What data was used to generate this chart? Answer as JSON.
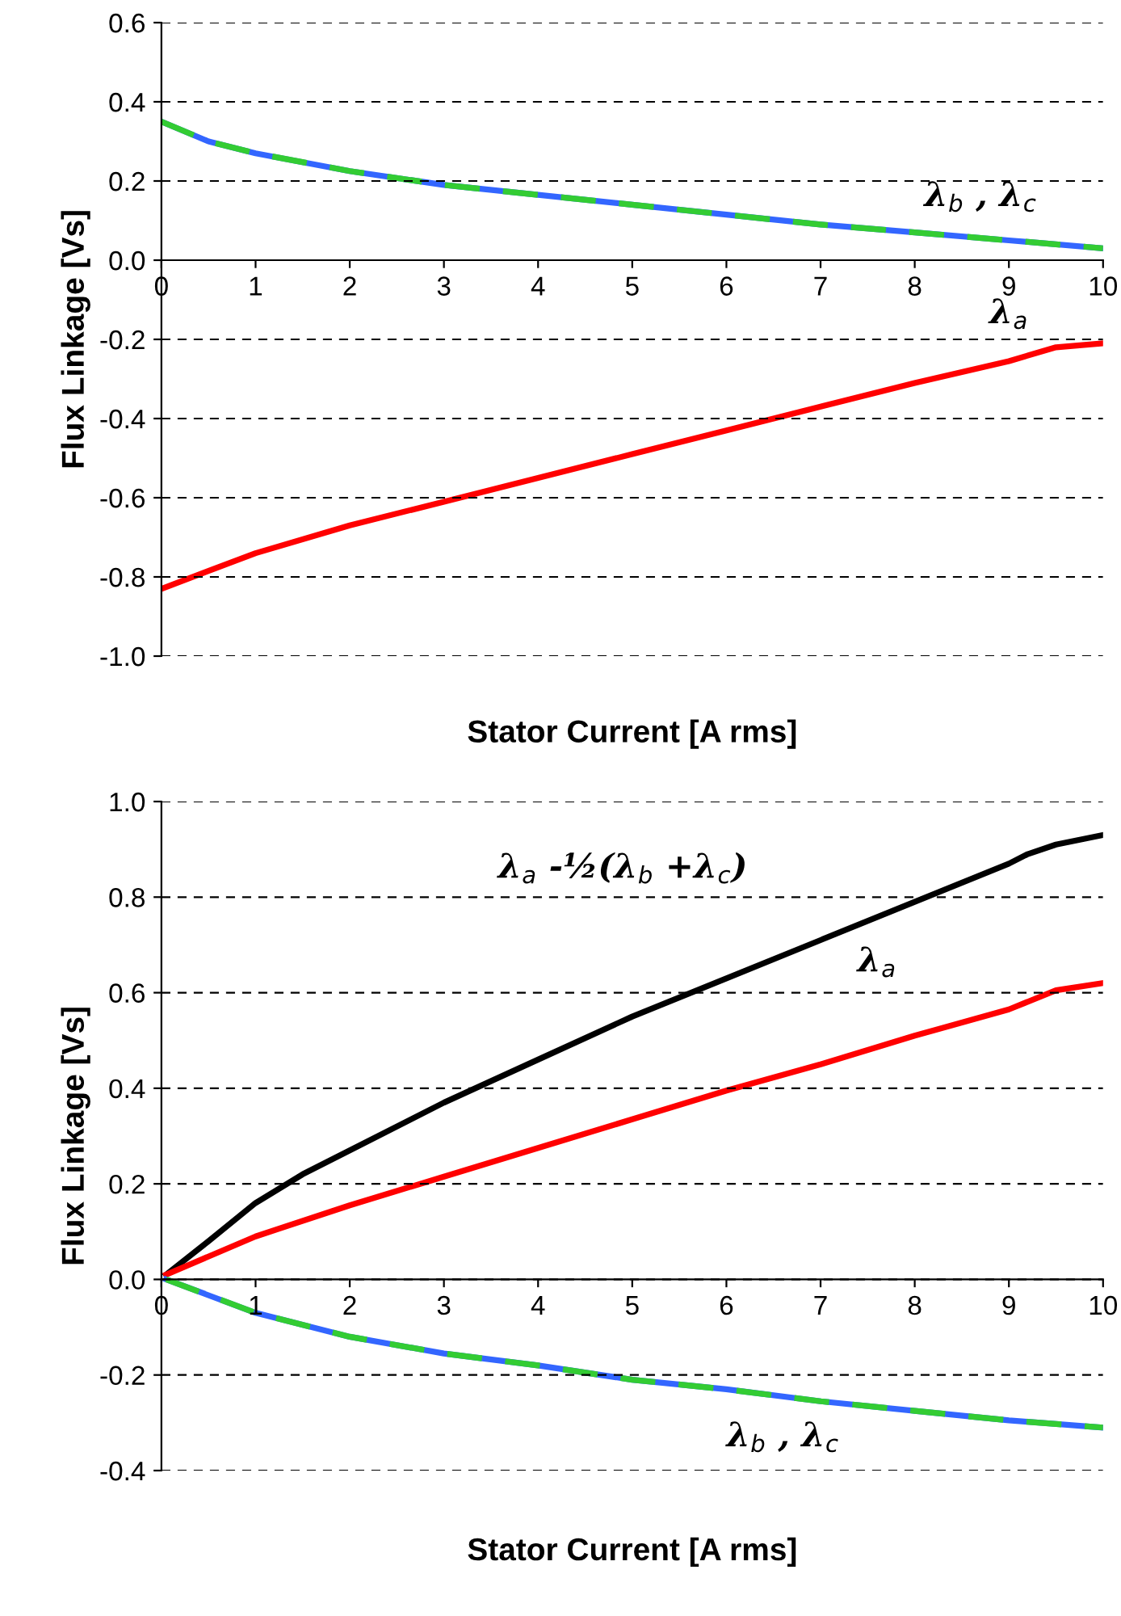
{
  "chart_data": [
    {
      "type": "line",
      "xlabel": "Stator Current [A rms]",
      "ylabel": "Flux Linkage [Vs]",
      "xlim": [
        0,
        10
      ],
      "ylim": [
        -1.0,
        0.6
      ],
      "xticks": [
        0,
        1,
        2,
        3,
        4,
        5,
        6,
        7,
        8,
        9,
        10
      ],
      "yticks": [
        {
          "value": -1.0,
          "label": "-1.0"
        },
        {
          "value": -0.8,
          "label": "-0.8"
        },
        {
          "value": -0.6,
          "label": "-0.6"
        },
        {
          "value": -0.4,
          "label": "-0.4"
        },
        {
          "value": -0.2,
          "label": "-0.2"
        },
        {
          "value": 0.0,
          "label": "0.0"
        },
        {
          "value": 0.2,
          "label": "0.2"
        },
        {
          "value": 0.4,
          "label": "0.4"
        },
        {
          "value": 0.6,
          "label": "0.6"
        }
      ],
      "grid": "y",
      "legend": false,
      "series": [
        {
          "color": "#ff0000",
          "line_style": "solid",
          "x": [
            0,
            1,
            2,
            3,
            4,
            5,
            6,
            7,
            8,
            9,
            9.5,
            10
          ],
          "values": [
            -0.83,
            -0.74,
            -0.67,
            -0.61,
            -0.55,
            -0.49,
            -0.43,
            -0.37,
            -0.31,
            -0.255,
            -0.22,
            -0.21
          ]
        },
        {
          "color": "#3366ff",
          "line_style": "solid",
          "x": [
            0,
            0.5,
            1,
            2,
            3,
            4,
            5,
            6,
            7,
            8,
            9,
            10
          ],
          "values": [
            0.35,
            0.3,
            0.27,
            0.225,
            0.19,
            0.165,
            0.14,
            0.115,
            0.09,
            0.07,
            0.05,
            0.03
          ]
        },
        {
          "color": "#33cc33",
          "line_style": "dashed",
          "x": [
            0,
            0.5,
            1,
            2,
            3,
            4,
            5,
            6,
            7,
            8,
            9,
            10
          ],
          "values": [
            0.35,
            0.3,
            0.27,
            0.225,
            0.19,
            0.165,
            0.14,
            0.115,
            0.09,
            0.07,
            0.05,
            0.03
          ]
        }
      ],
      "annotations": [
        "λ$_{b}$ , λ$_{c}$",
        "λ$_{a}$"
      ]
    },
    {
      "type": "line",
      "xlabel": "Stator Current [A rms]",
      "ylabel": "Flux Linkage [Vs]",
      "xlim": [
        0,
        10
      ],
      "ylim": [
        -0.4,
        1.0
      ],
      "xticks": [
        0,
        1,
        2,
        3,
        4,
        5,
        6,
        7,
        8,
        9,
        10
      ],
      "yticks": [
        {
          "value": -0.4,
          "label": "-0.4"
        },
        {
          "value": -0.2,
          "label": "-0.2"
        },
        {
          "value": 0.0,
          "label": "0.0"
        },
        {
          "value": 0.2,
          "label": "0.2"
        },
        {
          "value": 0.4,
          "label": "0.4"
        },
        {
          "value": 0.6,
          "label": "0.6"
        },
        {
          "value": 0.8,
          "label": "0.8"
        },
        {
          "value": 1.0,
          "label": "1.0"
        }
      ],
      "grid": "y",
      "legend": false,
      "series": [
        {
          "color": "#000000",
          "line_style": "solid",
          "x": [
            0.05,
            0.5,
            1,
            1.5,
            2,
            3,
            4,
            5,
            6,
            7,
            8,
            9,
            9.2,
            9.5,
            10
          ],
          "values": [
            0.01,
            0.08,
            0.16,
            0.22,
            0.27,
            0.37,
            0.46,
            0.55,
            0.63,
            0.71,
            0.79,
            0.87,
            0.89,
            0.91,
            0.93
          ]
        },
        {
          "color": "#ff0000",
          "line_style": "solid",
          "x": [
            0.05,
            1,
            2,
            3,
            4,
            5,
            6,
            7,
            8,
            9,
            9.5,
            10
          ],
          "values": [
            0.01,
            0.09,
            0.155,
            0.215,
            0.275,
            0.335,
            0.395,
            0.45,
            0.51,
            0.565,
            0.605,
            0.62
          ]
        },
        {
          "color": "#3366ff",
          "line_style": "solid",
          "x": [
            0.05,
            1,
            2,
            3,
            4,
            5,
            6,
            7,
            8,
            9,
            10
          ],
          "values": [
            0.0,
            -0.07,
            -0.12,
            -0.155,
            -0.18,
            -0.21,
            -0.23,
            -0.255,
            -0.275,
            -0.295,
            -0.31
          ]
        },
        {
          "color": "#33cc33",
          "line_style": "dashed",
          "x": [
            0.05,
            1,
            2,
            3,
            4,
            5,
            6,
            7,
            8,
            9,
            10
          ],
          "values": [
            0.0,
            -0.07,
            -0.12,
            -0.155,
            -0.18,
            -0.21,
            -0.23,
            -0.255,
            -0.275,
            -0.295,
            -0.31
          ]
        }
      ],
      "annotations": [
        "λ$_{a}$ -½(λ$_{b}$ +λ$_{c}$)",
        "λ$_{a}$",
        "λ$_{b}$ , λ$_{c}$"
      ]
    }
  ]
}
